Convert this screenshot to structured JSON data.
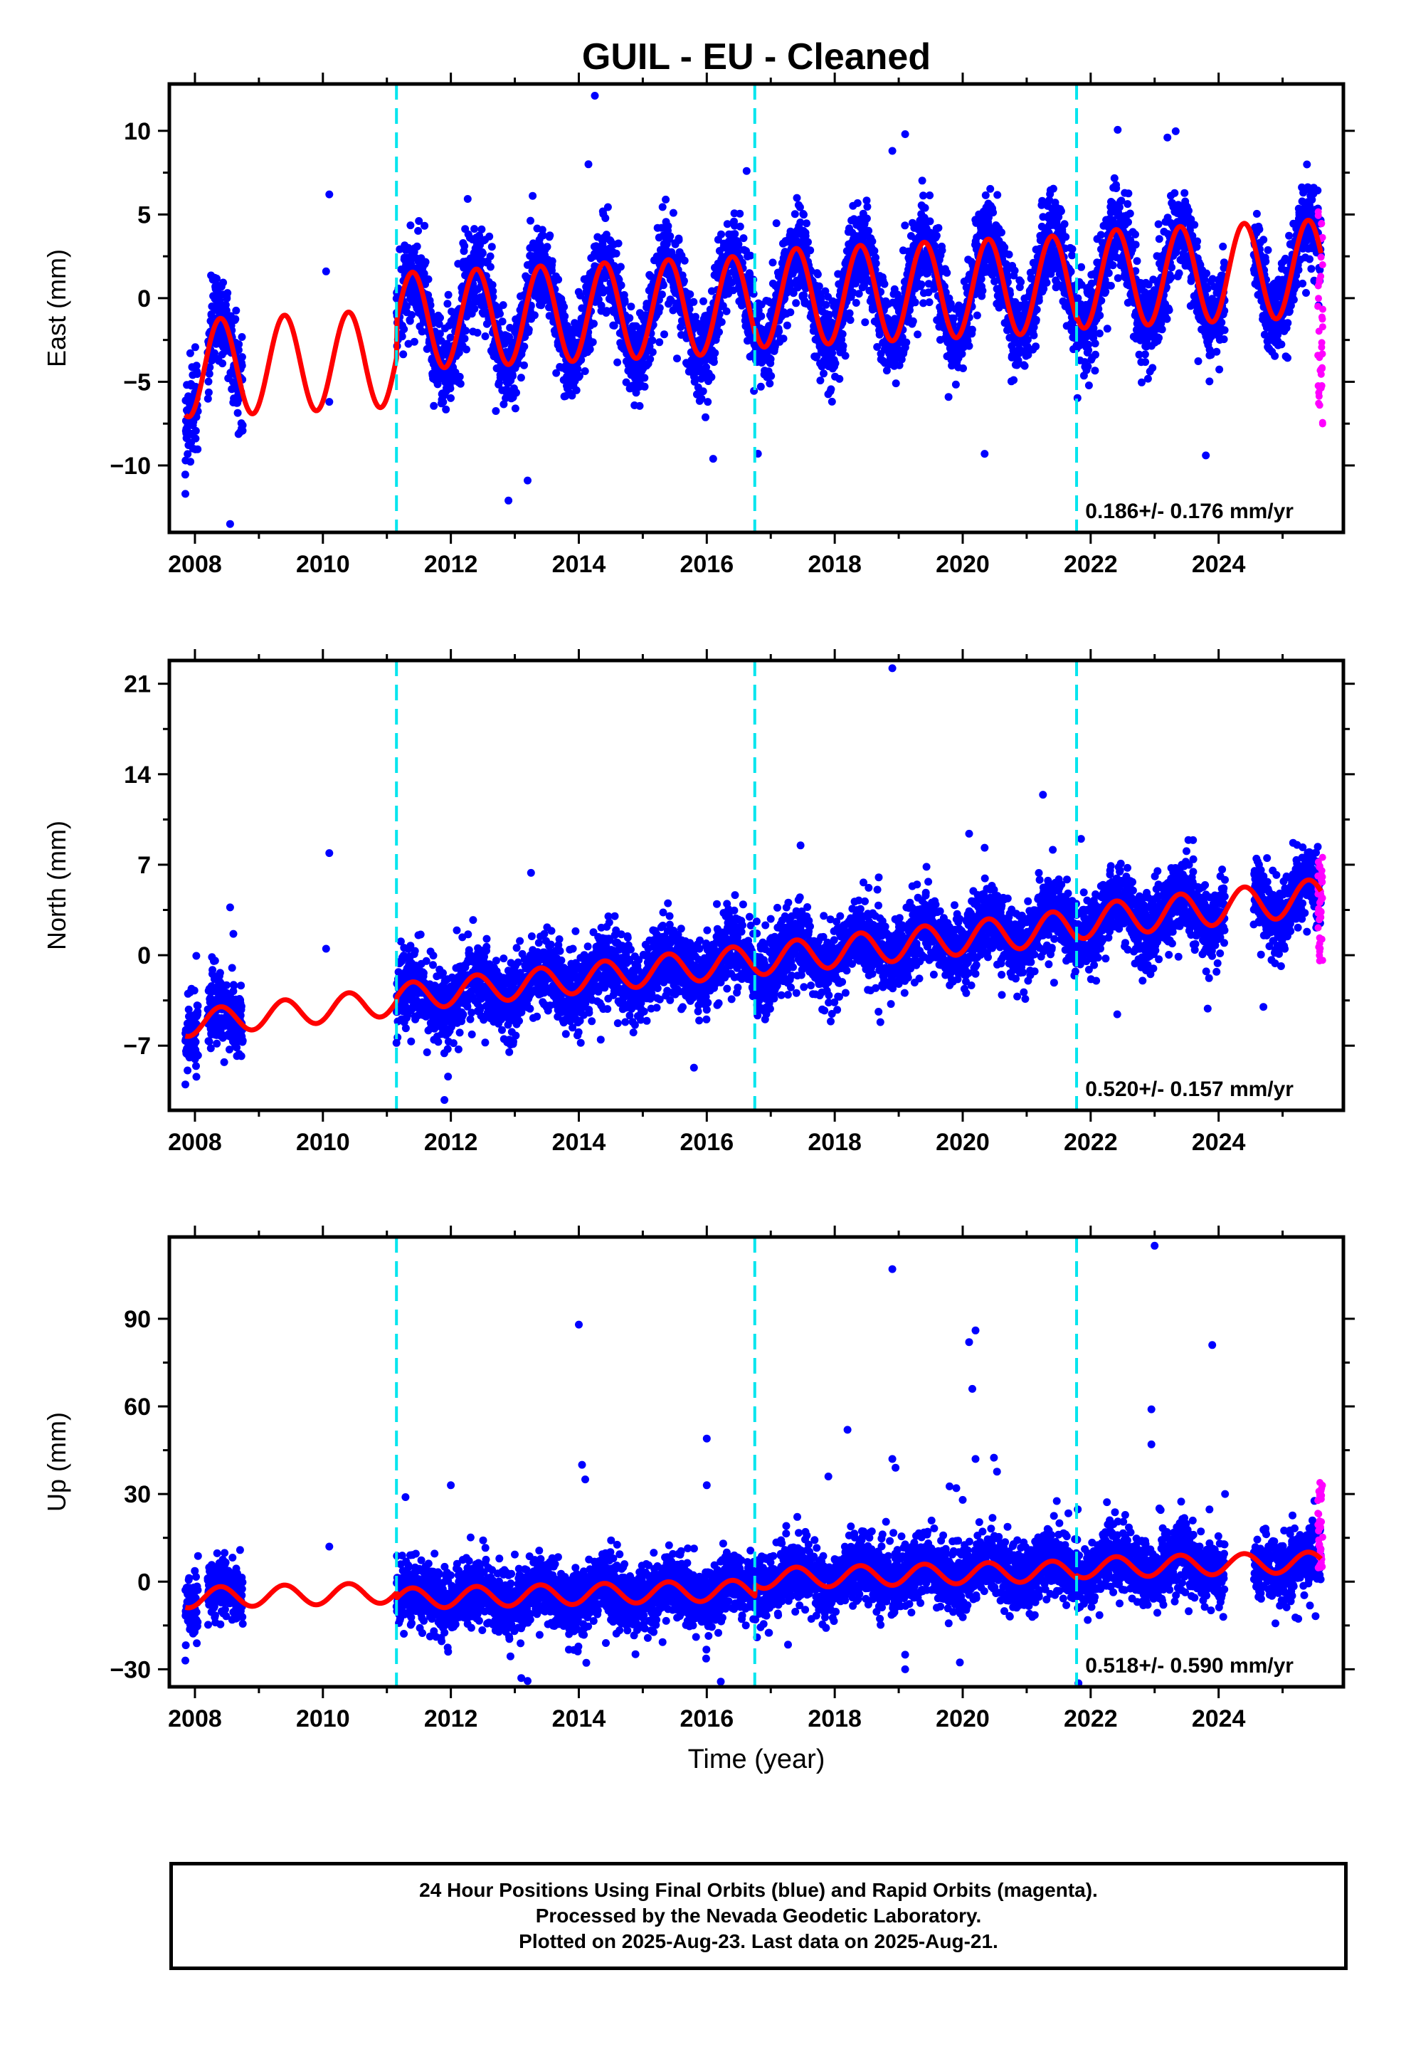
{
  "figure": {
    "title": "GUIL  - EU - Cleaned",
    "xlabel": "Time (year)",
    "footer": [
      "24 Hour Positions Using Final Orbits (blue) and Rapid Orbits (magenta).",
      "Processed by the Nevada Geodetic Laboratory.",
      "Plotted on 2025-Aug-23. Last data on 2025-Aug-21."
    ],
    "colors": {
      "final_orbits": "#0000ff",
      "rapid_orbits": "#ff00ff",
      "model_fit": "#ff0000",
      "equipment_change": "#00e5ee",
      "frame": "#000000"
    }
  },
  "chart_data": [
    {
      "type": "scatter",
      "panel": "east",
      "ylabel": "East (mm)",
      "xlim": [
        2007.6,
        2025.95
      ],
      "ylim": [
        -14,
        12.8
      ],
      "xticks": [
        2008,
        2010,
        2012,
        2014,
        2016,
        2018,
        2020,
        2022,
        2024
      ],
      "yticks": [
        -10,
        -5,
        0,
        5,
        10
      ],
      "rate_annotation": "0.186+/- 0.176 mm/yr",
      "velocity_mm_per_yr": 0.186,
      "uncertainty_mm_per_yr": 0.176,
      "equipment_changes": [
        2011.15,
        2016.75,
        2021.78
      ],
      "model": {
        "base": -2.6,
        "rate": 0.186,
        "amp_start": 2.9,
        "amp_end": 2.9,
        "ref_year": 2016.5,
        "offsets": [
          [
            2011.15,
            2.2
          ],
          [
            2016.75,
            0.3
          ],
          [
            2021.78,
            0.2
          ]
        ]
      },
      "data_spans": [
        [
          2007.85,
          2008.05
        ],
        [
          2008.2,
          2008.75
        ],
        [
          2011.15,
          2024.1
        ],
        [
          2024.55,
          2025.6
        ]
      ],
      "isolated_points": [
        [
          2010.1,
          6.2
        ],
        [
          2010.05,
          1.6
        ],
        [
          2010.1,
          -6.2
        ],
        [
          2014.25,
          12.1
        ],
        [
          2014.15,
          8.0
        ],
        [
          2018.9,
          8.8
        ],
        [
          2019.1,
          9.8
        ],
        [
          2016.1,
          -9.6
        ],
        [
          2016.8,
          -9.3
        ],
        [
          2012.9,
          -12.1
        ],
        [
          2013.2,
          -10.9
        ],
        [
          2008.55,
          -13.5
        ],
        [
          2007.85,
          -11.7
        ],
        [
          2023.8,
          -9.4
        ],
        [
          2023.2,
          9.6
        ]
      ],
      "noise_sd": 1.3,
      "rapid_points": {
        "x_range": [
          2025.55,
          2025.63
        ],
        "y_range": [
          -7.8,
          5.2
        ]
      }
    },
    {
      "type": "scatter",
      "panel": "north",
      "ylabel": "North (mm)",
      "xlim": [
        2007.6,
        2025.95
      ],
      "ylim": [
        -12,
        22.8
      ],
      "xticks": [
        2008,
        2010,
        2012,
        2014,
        2016,
        2018,
        2020,
        2022,
        2024
      ],
      "yticks": [
        -7,
        0,
        7,
        14,
        21
      ],
      "rate_annotation": "0.520+/- 0.157 mm/yr",
      "velocity_mm_per_yr": 0.52,
      "uncertainty_mm_per_yr": 0.157,
      "equipment_changes": [
        2011.15,
        2016.75,
        2021.78
      ],
      "model": {
        "base": -0.8,
        "rate": 0.52,
        "amp_start": 1.0,
        "amp_end": 1.4,
        "ref_year": 2016.5,
        "offsets": [
          [
            2011.15,
            0.3
          ],
          [
            2016.75,
            0.0
          ],
          [
            2021.78,
            0.3
          ]
        ]
      },
      "data_spans": [
        [
          2007.85,
          2008.05
        ],
        [
          2008.2,
          2008.75
        ],
        [
          2011.15,
          2024.1
        ],
        [
          2024.55,
          2025.6
        ]
      ],
      "isolated_points": [
        [
          2018.9,
          22.2
        ],
        [
          2020.1,
          9.4
        ],
        [
          2010.1,
          7.9
        ],
        [
          2010.05,
          0.5
        ],
        [
          2008.55,
          3.7
        ],
        [
          2011.9,
          -11.2
        ],
        [
          2007.85,
          -10.0
        ],
        [
          2015.8,
          -8.7
        ],
        [
          2024.7,
          -4.0
        ],
        [
          2021.85,
          9.0
        ],
        [
          2023.6,
          8.9
        ]
      ],
      "noise_sd": 1.4,
      "rapid_points": {
        "x_range": [
          2025.55,
          2025.63
        ],
        "y_range": [
          -0.5,
          7.8
        ]
      }
    },
    {
      "type": "scatter",
      "panel": "up",
      "ylabel": "Up (mm)",
      "xlim": [
        2007.6,
        2025.95
      ],
      "ylim": [
        -36,
        118
      ],
      "xticks": [
        2008,
        2010,
        2012,
        2014,
        2016,
        2018,
        2020,
        2022,
        2024
      ],
      "yticks": [
        -30,
        0,
        30,
        60,
        90
      ],
      "rate_annotation": "0.518+/- 0.590 mm/yr",
      "velocity_mm_per_yr": 0.518,
      "uncertainty_mm_per_yr": 0.59,
      "equipment_changes": [
        2011.15,
        2016.75,
        2021.78
      ],
      "model": {
        "base": -1.0,
        "rate": 0.518,
        "amp_start": 3.5,
        "amp_end": 3.5,
        "ref_year": 2016.5,
        "offsets": [
          [
            2011.15,
            -2.0
          ],
          [
            2016.75,
            4.0
          ],
          [
            2021.78,
            1.0
          ]
        ]
      },
      "data_spans": [
        [
          2007.85,
          2008.05
        ],
        [
          2008.2,
          2008.75
        ],
        [
          2011.15,
          2024.1
        ],
        [
          2024.55,
          2025.6
        ]
      ],
      "isolated_points": [
        [
          2014.0,
          88
        ],
        [
          2014.05,
          40
        ],
        [
          2014.1,
          35
        ],
        [
          2016.0,
          49
        ],
        [
          2016.0,
          33
        ],
        [
          2012.0,
          33
        ],
        [
          2018.2,
          52
        ],
        [
          2017.9,
          36
        ],
        [
          2018.9,
          107
        ],
        [
          2018.9,
          42
        ],
        [
          2018.95,
          39
        ],
        [
          2019.1,
          -25
        ],
        [
          2019.1,
          -30
        ],
        [
          2020.2,
          86
        ],
        [
          2020.1,
          82
        ],
        [
          2020.15,
          66
        ],
        [
          2020.2,
          42
        ],
        [
          2019.9,
          32
        ],
        [
          2020.0,
          28
        ],
        [
          2023.0,
          115
        ],
        [
          2022.95,
          59
        ],
        [
          2022.95,
          47
        ],
        [
          2023.9,
          81
        ],
        [
          2024.1,
          30
        ],
        [
          2013.1,
          -33
        ],
        [
          2013.2,
          -34
        ],
        [
          2007.85,
          -27
        ],
        [
          2010.1,
          12
        ]
      ],
      "noise_sd": 5.5,
      "rapid_points": {
        "x_range": [
          2025.55,
          2025.63
        ],
        "y_range": [
          4,
          34
        ]
      }
    }
  ]
}
